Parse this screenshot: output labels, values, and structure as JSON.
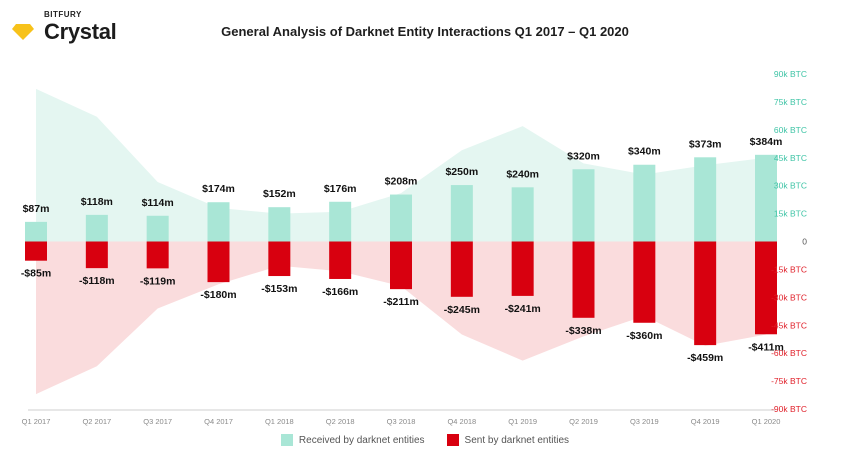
{
  "brand": {
    "kicker": "BITFURY",
    "name": "Crystal"
  },
  "colors": {
    "received": "#a9e6d6",
    "sent": "#d8000f",
    "received_area": "#e4f6f1",
    "sent_area": "#fadcdd",
    "right_tick": "#3fc4a6",
    "left_tick_neg": "#e0202a",
    "gem": "#f7c21a"
  },
  "chart_data": {
    "type": "bar",
    "title": "General Analysis of Darknet Entity Interactions Q1 2017 – Q1 2020",
    "categories": [
      "Q1 2017",
      "Q2 2017",
      "Q3 2017",
      "Q4 2017",
      "Q1 2018",
      "Q2 2018",
      "Q3 2018",
      "Q4 2018",
      "Q1 2019",
      "Q2 2019",
      "Q3 2019",
      "Q4 2019",
      "Q1 2020"
    ],
    "series": [
      {
        "name": "Received by darknet entities",
        "values": [
          87,
          118,
          114,
          174,
          152,
          176,
          208,
          250,
          240,
          320,
          340,
          373,
          384
        ],
        "labels": [
          "$87m",
          "$118m",
          "$114m",
          "$174m",
          "$152m",
          "$176m",
          "$208m",
          "$250m",
          "$240m",
          "$320m",
          "$340m",
          "$373m",
          "$384m"
        ]
      },
      {
        "name": "Sent by darknet entities",
        "values": [
          -85,
          -118,
          -119,
          -180,
          -153,
          -166,
          -211,
          -245,
          -241,
          -338,
          -360,
          -459,
          -411
        ],
        "labels": [
          "-$85m",
          "-$118m",
          "-$119m",
          "-$180m",
          "-$153m",
          "-$166m",
          "-$211m",
          "-$245m",
          "-$241m",
          "-$338m",
          "-$360m",
          "-$459m",
          "-$411m"
        ]
      }
    ],
    "area_series": {
      "received_btc": [
        82000,
        67000,
        32000,
        18000,
        15000,
        16000,
        26000,
        49000,
        62000,
        42000,
        36000,
        41000,
        45000
      ],
      "sent_btc": [
        -82000,
        -67000,
        -36000,
        -23000,
        -13000,
        -16000,
        -24000,
        -50000,
        -64000,
        -51000,
        -40000,
        -56000,
        -50000
      ]
    },
    "y_right_ticks": [
      "90k BTC",
      "75k BTC",
      "60k BTC",
      "45k BTC",
      "30k BTC",
      "15k BTC",
      "0",
      "-15k BTC",
      "-30k BTC",
      "-45k BTC",
      "-60k BTC",
      "-75k BTC",
      "-90k BTC"
    ],
    "y_right_lim": [
      -90000,
      90000
    ],
    "y_usd_lim": [
      -742,
      742
    ],
    "legend": "bottom-center",
    "grid": false
  }
}
